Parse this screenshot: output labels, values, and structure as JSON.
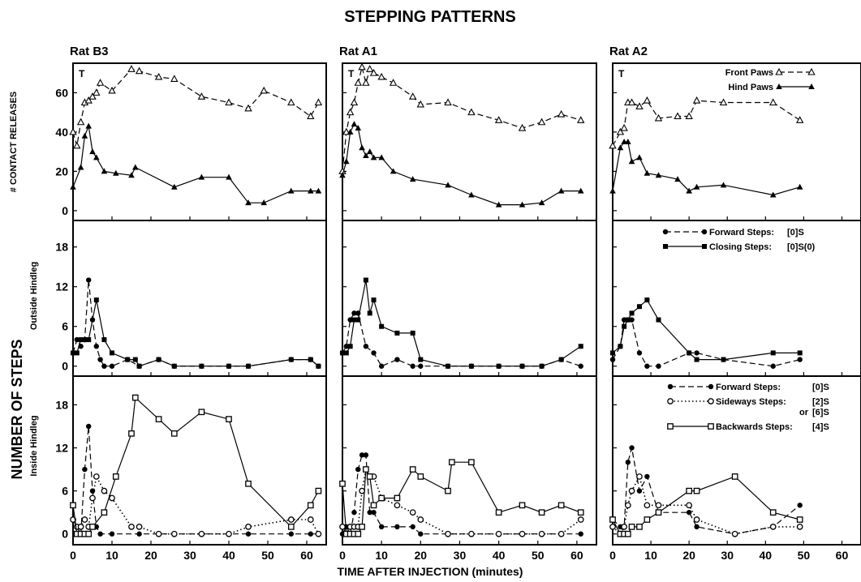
{
  "title": "STEPPING PATTERNS",
  "xlabel": "TIME AFTER INJECTION (minutes)",
  "ylabel_main": "NUMBER OF STEPS",
  "row_labels": [
    "# CONTACT RELEASES",
    "Outside Hindleg",
    "Inside Hindleg"
  ],
  "legends": {
    "contact": [
      "Front Paws",
      "Hind Paws"
    ],
    "outside": [
      "Forward Steps:",
      "[0]S",
      "Closing Steps:",
      "[0]S(0)"
    ],
    "inside": [
      "Forward Steps:",
      "[0]S",
      "Sideways Steps:",
      "[2]S",
      "or",
      "[6]S",
      "Backwards Steps:",
      "[4]S"
    ]
  },
  "chart_data": [
    {
      "type": "line",
      "panel": "Rat B3",
      "row": "# CONTACT RELEASES",
      "title": "Rat B3",
      "marker_text": "T",
      "xlim": [
        0,
        65
      ],
      "ylim": [
        -5,
        75
      ],
      "xticks": [
        0,
        10,
        20,
        30,
        40,
        50,
        60
      ],
      "yticks": [
        0,
        20,
        40,
        60
      ],
      "series": [
        {
          "name": "Front Paws",
          "style": "dashed",
          "marker": "open-triangle",
          "x": [
            0,
            1,
            2,
            3,
            4,
            5,
            6,
            7,
            10,
            15,
            17,
            22,
            26,
            33,
            40,
            45,
            49,
            56,
            61,
            63
          ],
          "y": [
            40,
            33,
            45,
            55,
            56,
            58,
            60,
            65,
            61,
            72,
            71,
            68,
            67,
            58,
            55,
            52,
            61,
            55,
            48,
            55
          ]
        },
        {
          "name": "Hind Paws",
          "style": "solid",
          "marker": "filled-triangle",
          "x": [
            0,
            2,
            3,
            4,
            5,
            6,
            8,
            11,
            15,
            16,
            26,
            33,
            40,
            45,
            49,
            56,
            61,
            63
          ],
          "y": [
            12,
            22,
            38,
            43,
            30,
            27,
            20,
            19,
            18,
            22,
            12,
            17,
            17,
            4,
            4,
            10,
            10,
            10
          ]
        }
      ]
    },
    {
      "type": "line",
      "panel": "Rat A1",
      "row": "# CONTACT RELEASES",
      "title": "Rat A1",
      "marker_text": "T",
      "xlim": [
        0,
        65
      ],
      "ylim": [
        -5,
        75
      ],
      "xticks": [
        0,
        10,
        20,
        30,
        40,
        50,
        60
      ],
      "yticks": [
        0,
        20,
        40,
        60
      ],
      "series": [
        {
          "name": "Front Paws",
          "style": "dashed",
          "marker": "open-triangle",
          "x": [
            0,
            1,
            2,
            3,
            4,
            5,
            6,
            7,
            8,
            10,
            13,
            18,
            20,
            27,
            33,
            40,
            46,
            51,
            56,
            61
          ],
          "y": [
            20,
            40,
            50,
            55,
            65,
            73,
            65,
            72,
            70,
            68,
            65,
            58,
            54,
            55,
            50,
            46,
            42,
            45,
            49,
            46
          ]
        },
        {
          "name": "Hind Paws",
          "style": "solid",
          "marker": "filled-triangle",
          "x": [
            0,
            1,
            2,
            3,
            4,
            5,
            6,
            7,
            8,
            10,
            13,
            18,
            27,
            33,
            40,
            46,
            51,
            56,
            61
          ],
          "y": [
            18,
            25,
            40,
            44,
            42,
            32,
            28,
            30,
            27,
            27,
            20,
            16,
            13,
            8,
            3,
            3,
            4,
            10,
            10
          ]
        }
      ]
    },
    {
      "type": "line",
      "panel": "Rat A2",
      "row": "# CONTACT RELEASES",
      "title": "Rat A2",
      "marker_text": "T",
      "xlim": [
        0,
        65
      ],
      "ylim": [
        -5,
        75
      ],
      "xticks": [
        0,
        10,
        20,
        30,
        40,
        50,
        60
      ],
      "yticks": [
        0,
        20,
        40,
        60
      ],
      "series": [
        {
          "name": "Front Paws",
          "style": "dashed",
          "marker": "open-triangle",
          "x": [
            0,
            2,
            3,
            4,
            5,
            7,
            9,
            12,
            17,
            20,
            22,
            29,
            42,
            49
          ],
          "y": [
            33,
            40,
            42,
            55,
            55,
            53,
            56,
            47,
            48,
            48,
            56,
            55,
            55,
            46
          ]
        },
        {
          "name": "Hind Paws",
          "style": "solid",
          "marker": "filled-triangle",
          "x": [
            0,
            2,
            3,
            4,
            5,
            7,
            9,
            12,
            17,
            20,
            22,
            29,
            42,
            49
          ],
          "y": [
            10,
            32,
            35,
            35,
            25,
            27,
            19,
            18,
            16,
            10,
            12,
            13,
            8,
            12
          ]
        }
      ]
    },
    {
      "type": "line",
      "panel": "Rat B3",
      "row": "Outside Hindleg",
      "xlim": [
        0,
        65
      ],
      "ylim": [
        -1.5,
        22
      ],
      "xticks": [
        0,
        10,
        20,
        30,
        40,
        50,
        60
      ],
      "yticks": [
        0,
        6,
        12,
        18
      ],
      "series": [
        {
          "name": "Forward Steps:",
          "style": "dashed",
          "marker": "filled-circle",
          "x": [
            0,
            1,
            2,
            3,
            4,
            5,
            6,
            7,
            8,
            10,
            14,
            17,
            22,
            26,
            33,
            40,
            45,
            56,
            61,
            63
          ],
          "y": [
            2,
            4,
            3,
            4,
            13,
            7,
            3,
            1,
            0,
            0,
            1,
            0,
            1,
            0,
            0,
            0,
            0,
            1,
            1,
            0
          ]
        },
        {
          "name": "Closing Steps:",
          "style": "solid",
          "marker": "filled-square",
          "x": [
            0,
            1,
            2,
            3,
            4,
            6,
            8,
            10,
            14,
            16,
            17,
            22,
            26,
            33,
            40,
            45,
            56,
            61,
            63
          ],
          "y": [
            2,
            2,
            4,
            4,
            4,
            10,
            4,
            2,
            1,
            1,
            0,
            1,
            0,
            0,
            0,
            0,
            1,
            1,
            0
          ]
        }
      ]
    },
    {
      "type": "line",
      "panel": "Rat A1",
      "row": "Outside Hindleg",
      "xlim": [
        0,
        65
      ],
      "ylim": [
        -1.5,
        22
      ],
      "xticks": [
        0,
        10,
        20,
        30,
        40,
        50,
        60
      ],
      "yticks": [
        0,
        6,
        12,
        18
      ],
      "series": [
        {
          "name": "Forward Steps:",
          "style": "dashed",
          "marker": "filled-circle",
          "x": [
            0,
            1,
            2,
            3,
            4,
            6,
            8,
            10,
            14,
            18,
            20,
            27,
            33,
            40,
            46,
            51,
            56,
            61
          ],
          "y": [
            2,
            3,
            7,
            8,
            8,
            3,
            2,
            0,
            1,
            0,
            0,
            0,
            0,
            0,
            0,
            0,
            1,
            0
          ]
        },
        {
          "name": "Closing Steps:",
          "style": "solid",
          "marker": "filled-square",
          "x": [
            0,
            1,
            2,
            3,
            4,
            6,
            7,
            8,
            10,
            14,
            18,
            20,
            27,
            33,
            40,
            46,
            51,
            56,
            61
          ],
          "y": [
            2,
            2,
            3,
            7,
            7,
            13,
            8,
            10,
            6,
            5,
            5,
            1,
            0,
            0,
            0,
            0,
            0,
            1,
            3
          ]
        }
      ]
    },
    {
      "type": "line",
      "panel": "Rat A2",
      "row": "Outside Hindleg",
      "xlim": [
        0,
        65
      ],
      "ylim": [
        -1.5,
        22
      ],
      "xticks": [
        0,
        10,
        20,
        30,
        40,
        50,
        60
      ],
      "yticks": [
        0,
        6,
        12,
        18
      ],
      "series": [
        {
          "name": "Forward Steps:",
          "style": "dashed",
          "marker": "filled-circle",
          "x": [
            0,
            2,
            3,
            4,
            5,
            7,
            9,
            12,
            20,
            22,
            29,
            42,
            49
          ],
          "y": [
            1,
            3,
            7,
            7,
            7,
            2,
            0,
            0,
            2,
            2,
            1,
            0,
            1
          ]
        },
        {
          "name": "Closing Steps:",
          "style": "solid",
          "marker": "filled-square",
          "x": [
            0,
            2,
            3,
            4,
            5,
            7,
            9,
            12,
            20,
            22,
            29,
            42,
            49
          ],
          "y": [
            2,
            3,
            6,
            7,
            8,
            9,
            10,
            7,
            2,
            1,
            1,
            2,
            2
          ]
        }
      ]
    },
    {
      "type": "line",
      "panel": "Rat B3",
      "row": "Inside Hindleg",
      "xlim": [
        0,
        65
      ],
      "ylim": [
        -1.5,
        22
      ],
      "xticks": [
        0,
        10,
        20,
        30,
        40,
        50,
        60
      ],
      "yticks": [
        0,
        6,
        12,
        18
      ],
      "series": [
        {
          "name": "Forward Steps:",
          "style": "dashed",
          "marker": "filled-circle",
          "x": [
            0,
            1,
            2,
            3,
            4,
            5,
            6,
            7,
            10,
            17,
            22,
            26,
            33,
            40,
            45,
            56,
            61,
            63
          ],
          "y": [
            2,
            1,
            0,
            9,
            15,
            6,
            1,
            0,
            0,
            0,
            0,
            0,
            0,
            0,
            0,
            0,
            0,
            0
          ]
        },
        {
          "name": "Sideways Steps:",
          "style": "dotted",
          "marker": "open-circle",
          "x": [
            0,
            1,
            2,
            3,
            4,
            5,
            6,
            8,
            10,
            15,
            17,
            22,
            26,
            33,
            40,
            45,
            56,
            61,
            63
          ],
          "y": [
            2,
            1,
            1,
            2,
            1,
            5,
            8,
            6,
            5,
            1,
            1,
            0,
            0,
            0,
            0,
            1,
            2,
            2,
            0
          ]
        },
        {
          "name": "Backwards Steps:",
          "style": "solid",
          "marker": "open-square",
          "x": [
            0,
            1,
            2,
            3,
            4,
            5,
            8,
            11,
            15,
            16,
            22,
            26,
            33,
            40,
            45,
            56,
            61,
            63
          ],
          "y": [
            4,
            0,
            0,
            0,
            0,
            1,
            3,
            8,
            14,
            19,
            16,
            14,
            17,
            16,
            7,
            1,
            4,
            6
          ]
        }
      ]
    },
    {
      "type": "line",
      "panel": "Rat A1",
      "row": "Inside Hindleg",
      "xlim": [
        0,
        65
      ],
      "ylim": [
        -1.5,
        22
      ],
      "xticks": [
        0,
        10,
        20,
        30,
        40,
        50,
        60
      ],
      "yticks": [
        0,
        6,
        12,
        18
      ],
      "series": [
        {
          "name": "Forward Steps:",
          "style": "dashed",
          "marker": "filled-circle",
          "x": [
            0,
            1,
            2,
            3,
            4,
            5,
            6,
            7,
            8,
            10,
            14,
            18,
            20,
            27,
            33,
            40,
            46,
            51,
            56,
            61
          ],
          "y": [
            0,
            1,
            0,
            3,
            9,
            11,
            11,
            3,
            3,
            1,
            1,
            1,
            0,
            0,
            0,
            0,
            0,
            0,
            0,
            0
          ]
        },
        {
          "name": "Sideways Steps:",
          "style": "dotted",
          "marker": "open-circle",
          "x": [
            0,
            1,
            2,
            3,
            4,
            5,
            6,
            7,
            8,
            10,
            14,
            18,
            20,
            27,
            33,
            40,
            46,
            51,
            56,
            61
          ],
          "y": [
            1,
            0,
            1,
            1,
            1,
            6,
            9,
            8,
            8,
            5,
            4,
            3,
            2,
            0,
            0,
            0,
            0,
            0,
            0,
            2
          ]
        },
        {
          "name": "Backwards Steps:",
          "style": "solid",
          "marker": "open-square",
          "x": [
            0,
            1,
            2,
            3,
            4,
            5,
            6,
            7,
            8,
            10,
            14,
            18,
            20,
            27,
            28,
            33,
            40,
            46,
            51,
            56,
            61
          ],
          "y": [
            7,
            0,
            0,
            0,
            0,
            1,
            9,
            8,
            4,
            5,
            5,
            9,
            8,
            6,
            10,
            10,
            3,
            4,
            3,
            4,
            3
          ]
        }
      ]
    },
    {
      "type": "line",
      "panel": "Rat A2",
      "row": "Inside Hindleg",
      "xlim": [
        0,
        65
      ],
      "ylim": [
        -1.5,
        22
      ],
      "xticks": [
        0,
        10,
        20,
        30,
        40,
        50,
        60
      ],
      "yticks": [
        0,
        6,
        12,
        18
      ],
      "series": [
        {
          "name": "Forward Steps:",
          "style": "dashed",
          "marker": "filled-circle",
          "x": [
            0,
            2,
            3,
            4,
            5,
            7,
            9,
            12,
            20,
            22,
            32,
            42,
            49
          ],
          "y": [
            2,
            1,
            1,
            10,
            12,
            6,
            8,
            3,
            3,
            1,
            0,
            1,
            4
          ]
        },
        {
          "name": "Sideways Steps:",
          "style": "dotted",
          "marker": "open-circle",
          "x": [
            0,
            2,
            3,
            4,
            5,
            7,
            9,
            12,
            20,
            22,
            32,
            42,
            49
          ],
          "y": [
            1,
            0,
            1,
            4,
            6,
            8,
            4,
            4,
            4,
            2,
            0,
            1,
            1
          ]
        },
        {
          "name": "Backwards Steps:",
          "style": "solid",
          "marker": "open-square",
          "x": [
            0,
            2,
            3,
            4,
            5,
            7,
            9,
            12,
            20,
            22,
            32,
            42,
            49
          ],
          "y": [
            2,
            0,
            0,
            0,
            1,
            1,
            2,
            3,
            6,
            6,
            8,
            3,
            2
          ]
        }
      ]
    }
  ]
}
